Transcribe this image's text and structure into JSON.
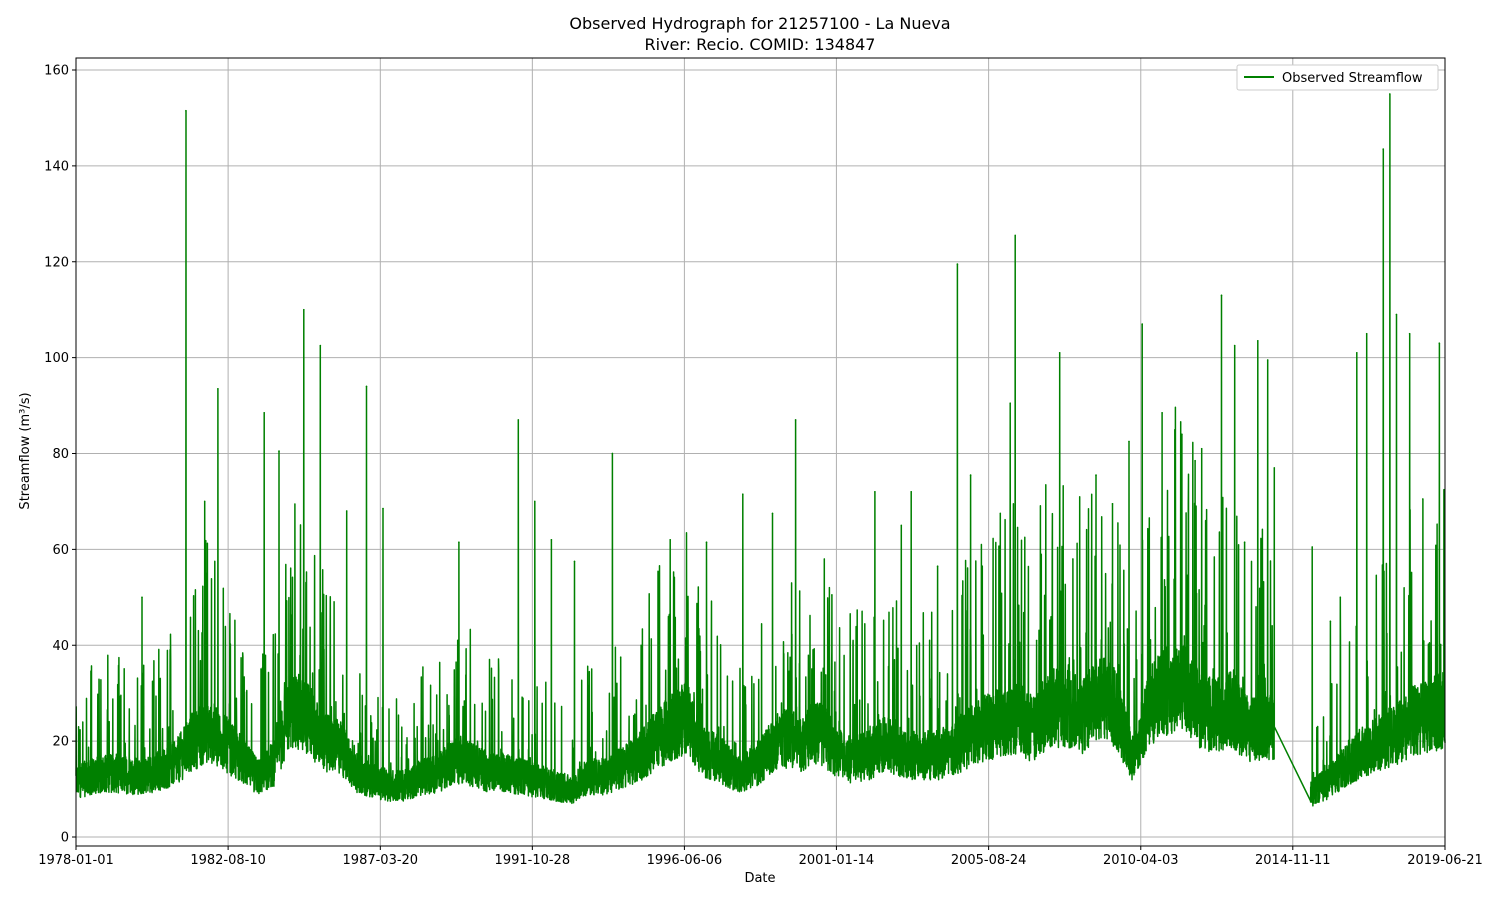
{
  "chart_data": {
    "type": "line",
    "title_line1": "Observed Hydrograph for 21257100 - La Nueva",
    "title_line2": "River: Recio. COMID: 134847",
    "xlabel": "Date",
    "ylabel": "Streamflow (m³/s)",
    "ylim": [
      0,
      160
    ],
    "y_ticks": [
      "0",
      "20",
      "40",
      "60",
      "80",
      "100",
      "120",
      "140",
      "160"
    ],
    "x_ticks": [
      "1978-01-01",
      "1982-08-10",
      "1987-03-20",
      "1991-10-28",
      "1996-06-06",
      "2001-01-14",
      "2005-08-24",
      "2010-04-03",
      "2014-11-11",
      "2019-06-21"
    ],
    "x_range": [
      "1978-01-01",
      "2019-06-21"
    ],
    "grid": true,
    "legend_position": "top-right",
    "series": [
      {
        "name": "Observed Streamflow",
        "color": "#008000",
        "baseline": [
          [
            1978.0,
            13
          ],
          [
            1979.0,
            15
          ],
          [
            1980.0,
            14
          ],
          [
            1981.0,
            17
          ],
          [
            1981.5,
            22
          ],
          [
            1982.0,
            25
          ],
          [
            1982.5,
            22
          ],
          [
            1983.0,
            18
          ],
          [
            1983.5,
            14
          ],
          [
            1984.0,
            17
          ],
          [
            1984.5,
            30
          ],
          [
            1985.0,
            28
          ],
          [
            1985.5,
            22
          ],
          [
            1986.0,
            21
          ],
          [
            1986.5,
            15
          ],
          [
            1987.0,
            13
          ],
          [
            1987.5,
            12
          ],
          [
            1988.0,
            12
          ],
          [
            1988.5,
            14
          ],
          [
            1989.0,
            15
          ],
          [
            1989.5,
            18
          ],
          [
            1990.0,
            17
          ],
          [
            1990.5,
            15
          ],
          [
            1991.0,
            15
          ],
          [
            1991.5,
            14
          ],
          [
            1992.0,
            13
          ],
          [
            1992.5,
            12
          ],
          [
            1993.0,
            11
          ],
          [
            1993.5,
            14
          ],
          [
            1994.0,
            14
          ],
          [
            1994.5,
            16
          ],
          [
            1995.0,
            18
          ],
          [
            1995.5,
            22
          ],
          [
            1996.0,
            25
          ],
          [
            1996.5,
            28
          ],
          [
            1997.0,
            20
          ],
          [
            1997.5,
            18
          ],
          [
            1998.0,
            15
          ],
          [
            1998.5,
            16
          ],
          [
            1999.0,
            20
          ],
          [
            1999.5,
            23
          ],
          [
            2000.0,
            22
          ],
          [
            2000.5,
            25
          ],
          [
            2001.0,
            20
          ],
          [
            2001.5,
            18
          ],
          [
            2002.0,
            19
          ],
          [
            2002.5,
            22
          ],
          [
            2003.0,
            20
          ],
          [
            2003.5,
            19
          ],
          [
            2004.0,
            19
          ],
          [
            2004.5,
            20
          ],
          [
            2005.0,
            23
          ],
          [
            2005.5,
            25
          ],
          [
            2006.0,
            27
          ],
          [
            2006.5,
            28
          ],
          [
            2007.0,
            25
          ],
          [
            2007.5,
            30
          ],
          [
            2008.0,
            30
          ],
          [
            2008.5,
            28
          ],
          [
            2009.0,
            33
          ],
          [
            2009.5,
            30
          ],
          [
            2010.0,
            18
          ],
          [
            2010.5,
            30
          ],
          [
            2011.0,
            34
          ],
          [
            2011.5,
            35
          ],
          [
            2012.0,
            30
          ],
          [
            2012.5,
            28
          ],
          [
            2013.0,
            30
          ],
          [
            2013.5,
            25
          ],
          [
            2014.0,
            25
          ],
          [
            2014.3,
            26
          ]
        ],
        "peaks": [
          [
            1980.0,
            50
          ],
          [
            1981.33,
            151.5
          ],
          [
            1981.9,
            70
          ],
          [
            1982.3,
            93.5
          ],
          [
            1983.7,
            88.5
          ],
          [
            1984.15,
            80.5
          ],
          [
            1984.9,
            110
          ],
          [
            1985.4,
            102.5
          ],
          [
            1986.2,
            68
          ],
          [
            1986.8,
            94
          ],
          [
            1987.3,
            68.5
          ],
          [
            1989.6,
            61.5
          ],
          [
            1991.4,
            87
          ],
          [
            1991.9,
            70
          ],
          [
            1992.4,
            62
          ],
          [
            1993.1,
            57.5
          ],
          [
            1994.25,
            80
          ],
          [
            1994.5,
            37.5
          ],
          [
            1996.0,
            62
          ],
          [
            1997.1,
            61.5
          ],
          [
            1998.2,
            71.5
          ],
          [
            1999.1,
            67.5
          ],
          [
            1999.8,
            87
          ],
          [
            2000.9,
            50.5
          ],
          [
            2002.2,
            72
          ],
          [
            2003.0,
            65
          ],
          [
            2003.3,
            72
          ],
          [
            2004.1,
            56.5
          ],
          [
            2004.7,
            119.5
          ],
          [
            2005.1,
            75.5
          ],
          [
            2006.0,
            67.5
          ],
          [
            2006.3,
            90.5
          ],
          [
            2006.45,
            125.5
          ],
          [
            2007.1,
            41
          ],
          [
            2007.8,
            101
          ],
          [
            2008.2,
            58
          ],
          [
            2008.9,
            75.5
          ],
          [
            2009.4,
            69.5
          ],
          [
            2009.9,
            82.5
          ],
          [
            2010.3,
            107
          ],
          [
            2010.9,
            88.5
          ],
          [
            2011.5,
            84
          ],
          [
            2011.9,
            78.5
          ],
          [
            2012.1,
            81
          ],
          [
            2012.7,
            113
          ],
          [
            2013.1,
            102.5
          ],
          [
            2013.4,
            61.5
          ],
          [
            2013.8,
            103.5
          ],
          [
            2014.1,
            99.5
          ],
          [
            2014.3,
            77
          ]
        ],
        "gap": [
          [
            2014.3,
            23
          ],
          [
            2015.4,
            7.5
          ]
        ],
        "baseline2": [
          [
            2015.4,
            10
          ],
          [
            2016.0,
            13
          ],
          [
            2016.5,
            17
          ],
          [
            2017.0,
            20
          ],
          [
            2017.5,
            22
          ],
          [
            2018.0,
            24
          ],
          [
            2018.5,
            27
          ],
          [
            2019.0,
            28
          ],
          [
            2019.47,
            30
          ]
        ],
        "peaks2": [
          [
            2015.45,
            60.5
          ],
          [
            2016.0,
            45
          ],
          [
            2016.3,
            50
          ],
          [
            2016.8,
            101
          ],
          [
            2017.1,
            105
          ],
          [
            2017.6,
            143.5
          ],
          [
            2017.8,
            155
          ],
          [
            2018.0,
            109
          ],
          [
            2018.4,
            105
          ],
          [
            2018.8,
            70.5
          ],
          [
            2019.3,
            103
          ]
        ]
      }
    ]
  }
}
